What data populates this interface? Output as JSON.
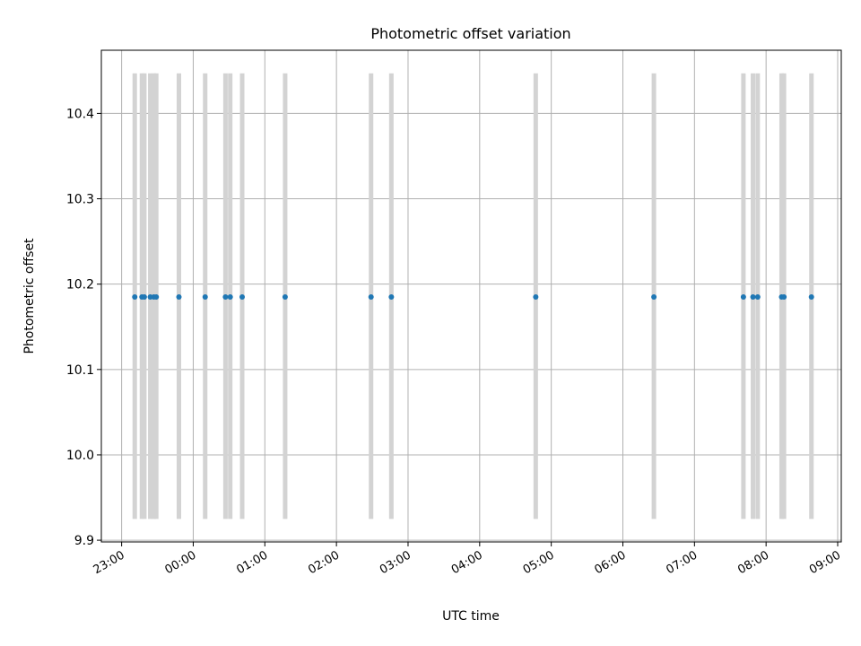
{
  "chart_data": {
    "type": "scatter",
    "title": "Photometric offset variation",
    "xlabel": "UTC time",
    "ylabel": "Photometric offset",
    "x_ticks": [
      "23:00",
      "00:00",
      "01:00",
      "02:00",
      "03:00",
      "04:00",
      "05:00",
      "06:00",
      "07:00",
      "08:00",
      "09:00"
    ],
    "x_tick_hours": [
      23,
      24,
      25,
      26,
      27,
      28,
      29,
      30,
      31,
      32,
      33
    ],
    "y_ticks": [
      "9.9",
      "10.0",
      "10.1",
      "10.2",
      "10.3",
      "10.4"
    ],
    "y_tick_values": [
      9.9,
      10.0,
      10.1,
      10.2,
      10.3,
      10.4
    ],
    "xlim": [
      "22:43",
      "09:03"
    ],
    "ylim": [
      9.898,
      10.474
    ],
    "grid": true,
    "colors": {
      "points": "#1f77b4",
      "error_bars": "#d3d3d3",
      "grid": "#b0b0b0"
    },
    "points": {
      "x": [
        "23:11",
        "23:17",
        "23:19",
        "23:24",
        "23:27",
        "23:29",
        "23:48",
        "00:10",
        "00:27",
        "00:31",
        "00:41",
        "01:17",
        "02:29",
        "02:46",
        "04:47",
        "06:26",
        "07:41",
        "07:49",
        "07:53",
        "08:13",
        "08:15",
        "08:38"
      ],
      "y": [
        10.185,
        10.185,
        10.185,
        10.185,
        10.185,
        10.185,
        10.185,
        10.185,
        10.185,
        10.185,
        10.185,
        10.185,
        10.185,
        10.185,
        10.185,
        10.185,
        10.185,
        10.185,
        10.185,
        10.185,
        10.185,
        10.185
      ],
      "y_low": 9.925,
      "y_high": 10.447
    }
  }
}
